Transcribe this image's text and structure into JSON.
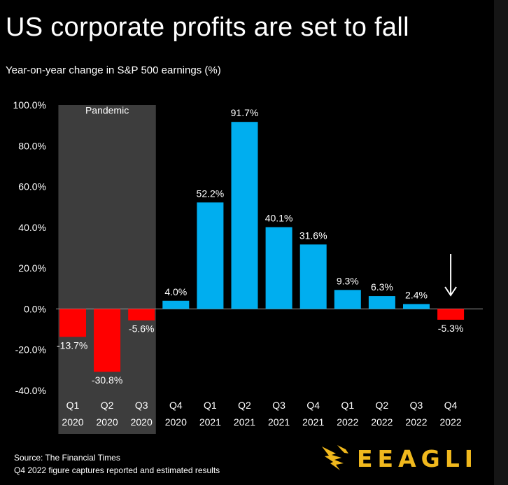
{
  "title": "US corporate profits are set to fall",
  "subtitle": "Year-on-year change in S&P 500 earnings (%)",
  "footer": {
    "source": "Source: The Financial Times",
    "note": "Q4 2022 figure captures reported and estimated results"
  },
  "logo": {
    "text": "EEAGLI",
    "icon": "eagle-icon",
    "color": "#f0b81d"
  },
  "colors": {
    "positive": "#00aeef",
    "negative": "#ff0000",
    "highlight_box": "#3d3d3d",
    "background": "#000000",
    "text": "#ffffff"
  },
  "chart_data": {
    "type": "bar",
    "title": "US corporate profits are set to fall",
    "subtitle": "Year-on-year change in S&P 500 earnings (%)",
    "categories": [
      [
        "Q1",
        "2020"
      ],
      [
        "Q2",
        "2020"
      ],
      [
        "Q3",
        "2020"
      ],
      [
        "Q4",
        "2020"
      ],
      [
        "Q1",
        "2021"
      ],
      [
        "Q2",
        "2021"
      ],
      [
        "Q3",
        "2021"
      ],
      [
        "Q4",
        "2021"
      ],
      [
        "Q1",
        "2022"
      ],
      [
        "Q2",
        "2022"
      ],
      [
        "Q3",
        "2022"
      ],
      [
        "Q4",
        "2022"
      ]
    ],
    "values": [
      -13.7,
      -30.8,
      -5.6,
      4.0,
      52.2,
      91.7,
      40.1,
      31.6,
      9.3,
      6.3,
      2.4,
      -5.3
    ],
    "value_labels": [
      "-13.7%",
      "-30.8%",
      "-5.6%",
      "4.0%",
      "52.2%",
      "91.7%",
      "40.1%",
      "31.6%",
      "9.3%",
      "6.3%",
      "2.4%",
      "-5.3%"
    ],
    "ylim": [
      -40,
      100
    ],
    "yticks": [
      -40,
      -20,
      0,
      20,
      40,
      60,
      80,
      100
    ],
    "ytick_labels": [
      "-40.0%",
      "-20.0%",
      "0.0%",
      "20.0%",
      "40.0%",
      "60.0%",
      "80.0%",
      "100.0%"
    ],
    "xlabel": "",
    "ylabel": "",
    "grid": false,
    "shaded_region": {
      "label": "Pandemic",
      "from_index": 0,
      "to_index": 2
    },
    "annotation_arrow": {
      "index": 11,
      "direction": "down"
    }
  }
}
